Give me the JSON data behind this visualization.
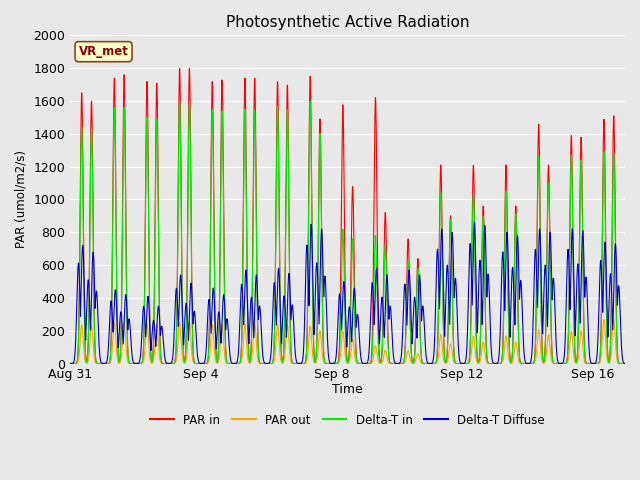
{
  "title": "Photosynthetic Active Radiation",
  "ylabel": "PAR (umol/m2/s)",
  "xlabel": "Time",
  "annotation": "VR_met",
  "ylim": [
    0,
    2000
  ],
  "background_color": "#e8e8e8",
  "plot_bg_color": "#e8e8e8",
  "grid_color": "#ffffff",
  "x_ticks": [
    "Aug 31",
    "Sep 4",
    "Sep 8",
    "Sep 12",
    "Sep 16"
  ],
  "x_tick_pos": [
    0,
    4,
    8,
    12,
    16
  ],
  "legend_labels": [
    "PAR in",
    "PAR out",
    "Delta-T in",
    "Delta-T Diffuse"
  ],
  "colors": {
    "PAR in": "#ff0000",
    "PAR out": "#ffa500",
    "Delta-T in": "#00ee00",
    "Delta-T Diffuse": "#0000cc"
  },
  "n_days": 17,
  "peaks_PAR_in": [
    1650,
    1740,
    1720,
    1800,
    1720,
    1740,
    1720,
    1750,
    1580,
    1620,
    760,
    1210,
    1210,
    1210,
    1460,
    1390,
    1490
  ],
  "peaks_PAR_in2": [
    1600,
    1760,
    1710,
    1800,
    1730,
    1740,
    1700,
    1490,
    1080,
    920,
    640,
    900,
    960,
    960,
    1210,
    1380,
    1510
  ],
  "peaks_PAR_out": [
    235,
    248,
    238,
    248,
    238,
    238,
    238,
    228,
    196,
    108,
    78,
    176,
    168,
    168,
    208,
    198,
    268
  ],
  "peaks_PAR_out2": [
    230,
    250,
    240,
    250,
    240,
    240,
    236,
    200,
    148,
    80,
    60,
    120,
    130,
    130,
    175,
    200,
    270
  ],
  "peaks_Delta_in": [
    1440,
    1560,
    1500,
    1600,
    1550,
    1550,
    1570,
    1600,
    820,
    780,
    620,
    1040,
    1040,
    1050,
    1260,
    1270,
    1290
  ],
  "peaks_Delta_in2": [
    1430,
    1560,
    1490,
    1590,
    1540,
    1540,
    1550,
    1400,
    760,
    720,
    580,
    880,
    900,
    910,
    1100,
    1240,
    1280
  ],
  "peaks_Delta_dif": [
    720,
    450,
    410,
    540,
    460,
    570,
    580,
    850,
    500,
    580,
    570,
    820,
    860,
    800,
    820,
    820,
    740
  ],
  "peaks_Delta_dif2": [
    680,
    420,
    350,
    490,
    420,
    540,
    550,
    820,
    460,
    540,
    540,
    800,
    840,
    780,
    800,
    810,
    730
  ]
}
